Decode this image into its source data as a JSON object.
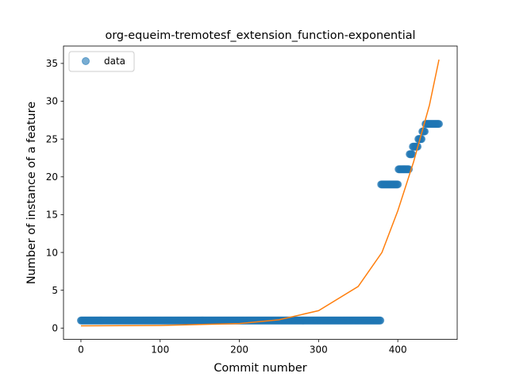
{
  "chart_data": {
    "type": "scatter",
    "title": "org-equeim-tremotesf_extension_function-exponential",
    "xlabel": "Commit number",
    "ylabel": "Number of instance of a feature",
    "xlim": [
      -22,
      475
    ],
    "ylim": [
      -1.5,
      37.3
    ],
    "xticks": [
      0,
      100,
      200,
      300,
      400
    ],
    "yticks": [
      0,
      5,
      10,
      15,
      20,
      25,
      30,
      35
    ],
    "grid": false,
    "legend": {
      "placement": "top-left",
      "entries": [
        "data"
      ]
    },
    "series": [
      {
        "name": "data",
        "kind": "scatter",
        "color": "#1f77b4",
        "segments": [
          {
            "x_start": 0,
            "x_end": 378,
            "y": 1
          },
          {
            "x_start": 379,
            "x_end": 400,
            "y": 19
          },
          {
            "x_start": 401,
            "x_end": 414,
            "y": 21
          },
          {
            "x_start": 415,
            "x_end": 418,
            "y": 23
          },
          {
            "x_start": 419,
            "x_end": 425,
            "y": 24
          },
          {
            "x_start": 426,
            "x_end": 430,
            "y": 25
          },
          {
            "x_start": 431,
            "x_end": 434,
            "y": 26
          },
          {
            "x_start": 435,
            "x_end": 452,
            "y": 27
          }
        ]
      },
      {
        "kind": "line",
        "color": "#ff7f0e",
        "model": "exponential",
        "points": [
          [
            0,
            0.3
          ],
          [
            100,
            0.35
          ],
          [
            200,
            0.6
          ],
          [
            250,
            1.1
          ],
          [
            300,
            2.3
          ],
          [
            350,
            5.5
          ],
          [
            380,
            10
          ],
          [
            400,
            15.5
          ],
          [
            420,
            22
          ],
          [
            440,
            29.5
          ],
          [
            452,
            35.5
          ]
        ]
      }
    ]
  }
}
